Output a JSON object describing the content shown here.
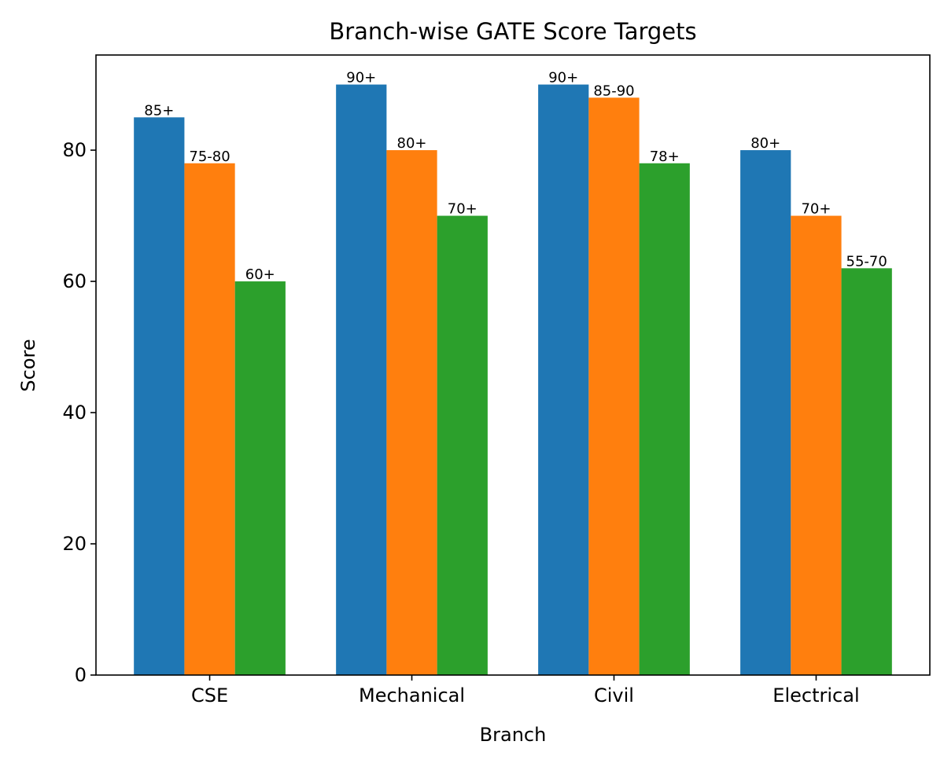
{
  "chart_data": {
    "type": "bar",
    "title": "Branch-wise GATE Score Targets",
    "xlabel": "Branch",
    "ylabel": "Score",
    "categories": [
      "CSE",
      "Mechanical",
      "Civil",
      "Electrical"
    ],
    "series": [
      {
        "values": [
          85,
          90,
          90,
          80
        ],
        "labels": [
          "85+",
          "90+",
          "90+",
          "80+"
        ],
        "color": "#1f77b4"
      },
      {
        "values": [
          78,
          80,
          88,
          70
        ],
        "labels": [
          "75-80",
          "80+",
          "85-90",
          "70+"
        ],
        "color": "#ff7f0e"
      },
      {
        "values": [
          60,
          70,
          78,
          62
        ],
        "labels": [
          "60+",
          "70+",
          "78+",
          "55-70"
        ],
        "color": "#2ca02c"
      }
    ],
    "ylim": [
      0,
      94.5
    ],
    "yticks": [
      0,
      20,
      40,
      60,
      80
    ],
    "grid": false,
    "legend": "none"
  }
}
